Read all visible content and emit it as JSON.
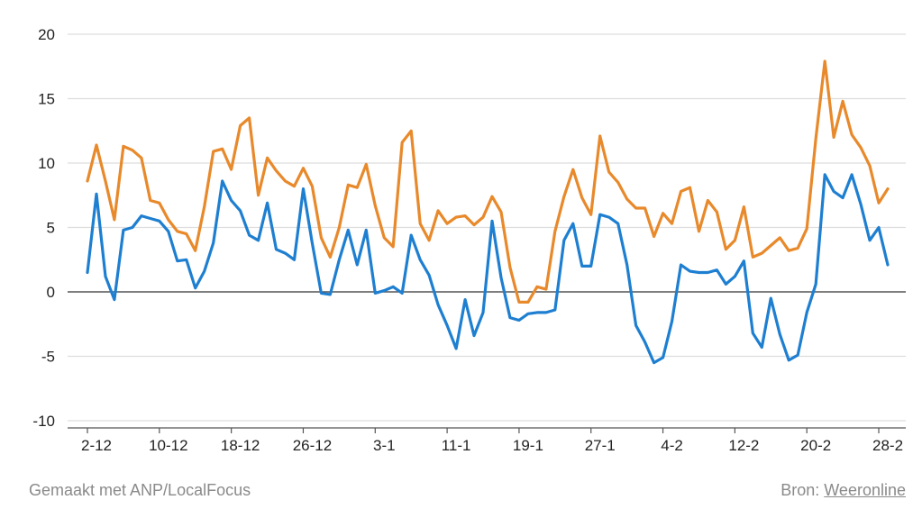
{
  "chart_data": {
    "type": "line",
    "title": "",
    "xlabel": "",
    "ylabel": "",
    "ylim": [
      -10,
      20
    ],
    "yticks": [
      -10,
      -5,
      0,
      5,
      10,
      15,
      20
    ],
    "grid": true,
    "x_tick_labels": [
      "2-12",
      "10-12",
      "18-12",
      "26-12",
      "3-1",
      "11-1",
      "19-1",
      "27-1",
      "4-2",
      "12-2",
      "20-2",
      "28-2"
    ],
    "x_tick_index": [
      0,
      8,
      16,
      24,
      32,
      40,
      48,
      56,
      64,
      72,
      80,
      88
    ],
    "series": [
      {
        "color": "#e8892b",
        "values": [
          8.6,
          11.4,
          8.6,
          5.6,
          11.3,
          11.0,
          10.4,
          7.1,
          6.9,
          5.6,
          4.7,
          4.5,
          3.2,
          6.6,
          10.9,
          11.1,
          9.5,
          12.9,
          13.5,
          7.5,
          10.4,
          9.4,
          8.6,
          8.2,
          9.6,
          8.2,
          4.2,
          2.7,
          5.0,
          8.3,
          8.1,
          9.9,
          6.7,
          4.2,
          3.5,
          11.6,
          12.5,
          5.3,
          4.0,
          6.3,
          5.3,
          5.8,
          5.9,
          5.2,
          5.8,
          7.4,
          6.2,
          1.9,
          -0.8,
          -0.8,
          0.4,
          0.2,
          4.7,
          7.4,
          9.5,
          7.3,
          6.0,
          12.1,
          9.3,
          8.5,
          7.2,
          6.5,
          6.5,
          4.3,
          6.1,
          5.3,
          7.8,
          8.1,
          4.7,
          7.1,
          6.2,
          3.3,
          4.0,
          6.6,
          2.7,
          3.0,
          3.6,
          4.2,
          3.2,
          3.4,
          4.9,
          11.9,
          17.9,
          12.0,
          14.8,
          12.2,
          11.2,
          9.8,
          6.9,
          8.0
        ]
      },
      {
        "color": "#1e7fd1",
        "values": [
          1.5,
          7.6,
          1.2,
          -0.6,
          4.8,
          5.0,
          5.9,
          5.7,
          5.5,
          4.7,
          2.4,
          2.5,
          0.3,
          1.6,
          3.8,
          8.6,
          7.1,
          6.3,
          4.4,
          4.0,
          6.9,
          3.3,
          3.0,
          2.5,
          8.0,
          3.8,
          -0.1,
          -0.2,
          2.5,
          4.8,
          2.1,
          4.8,
          -0.1,
          0.1,
          0.4,
          -0.1,
          4.4,
          2.5,
          1.3,
          -1.0,
          -2.6,
          -4.4,
          -0.6,
          -3.4,
          -1.6,
          5.5,
          1.1,
          -2.0,
          -2.2,
          -1.7,
          -1.6,
          -1.6,
          -1.4,
          4.0,
          5.3,
          2.0,
          2.0,
          6.0,
          5.8,
          5.3,
          2.1,
          -2.6,
          -3.9,
          -5.5,
          -5.1,
          -2.3,
          2.1,
          1.6,
          1.5,
          1.5,
          1.7,
          0.6,
          1.2,
          2.4,
          -3.2,
          -4.3,
          -0.5,
          -3.3,
          -5.3,
          -4.9,
          -1.6,
          0.6,
          9.1,
          7.8,
          7.3,
          9.1,
          6.8,
          4.0,
          5.0,
          2.1
        ]
      }
    ]
  },
  "footer": {
    "made_with": "Gemaakt met ANP/LocalFocus",
    "source_label": "Bron:",
    "source_name": "Weeronline"
  }
}
